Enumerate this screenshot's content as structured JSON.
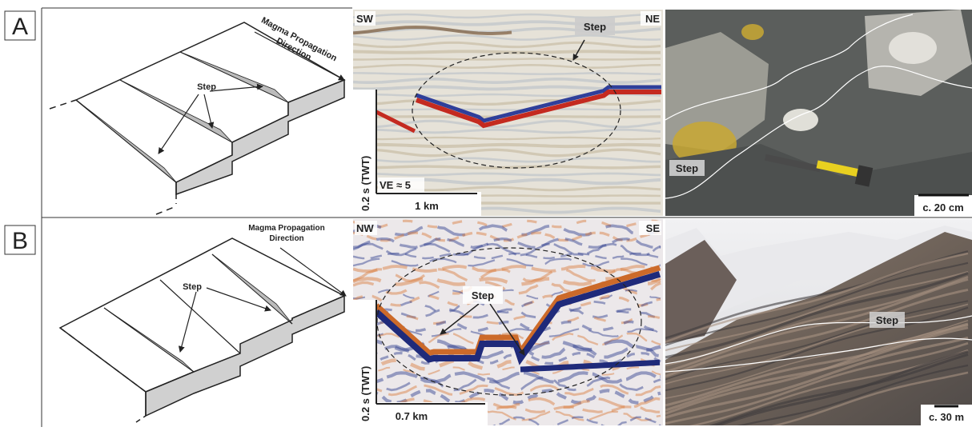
{
  "panels": [
    {
      "label": "A",
      "diagram": {
        "direction_label": [
          "Magma Propagation",
          "Direction"
        ],
        "step_label": "Step"
      },
      "seismic": {
        "left_label": "SW",
        "right_label": "NE",
        "step_label": "Step",
        "ve_label": "VE ≈ 5",
        "time_scale": "0.2 s (TWT)",
        "distance_scale": "1 km"
      },
      "photo": {
        "step_label": "Step",
        "scale": "c. 20 cm"
      }
    },
    {
      "label": "B",
      "diagram": {
        "direction_label": [
          "Magma Propagation",
          "Direction"
        ],
        "step_label": "Step"
      },
      "seismic": {
        "left_label": "NW",
        "right_label": "SE",
        "step_label": "Step",
        "time_scale": "0.2 s (TWT)",
        "distance_scale": "0.7 km"
      },
      "photo": {
        "step_label": "Step",
        "scale": "c. 30 m"
      }
    }
  ]
}
